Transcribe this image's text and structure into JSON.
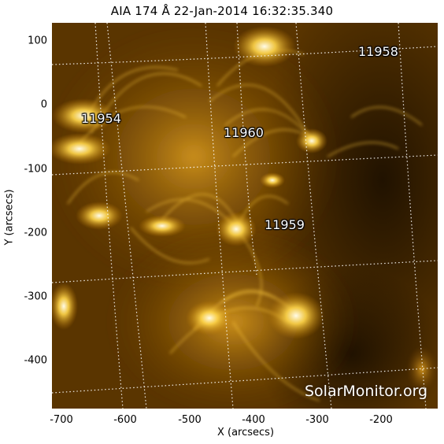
{
  "title": "AIA 174 Å 22-Jan-2014 16:32:35.340",
  "axes": {
    "x_label": "X (arcsecs)",
    "y_label": "Y (arcsecs)",
    "x_ticks": [
      "-700",
      "-600",
      "-500",
      "-400",
      "-300",
      "-200"
    ],
    "y_ticks": [
      "100",
      "0",
      "-100",
      "-200",
      "-300",
      "-400"
    ]
  },
  "active_regions": [
    {
      "label": "11958"
    },
    {
      "label": "11954"
    },
    {
      "label": "11960"
    },
    {
      "label": "11959"
    }
  ],
  "watermark": "SolarMonitor.org",
  "colors": {
    "background": "#000000",
    "emission_base": "#3a2000",
    "emission_bright": "#ffd040",
    "emission_hot": "#fff6d0",
    "grid": "#ffffff"
  }
}
